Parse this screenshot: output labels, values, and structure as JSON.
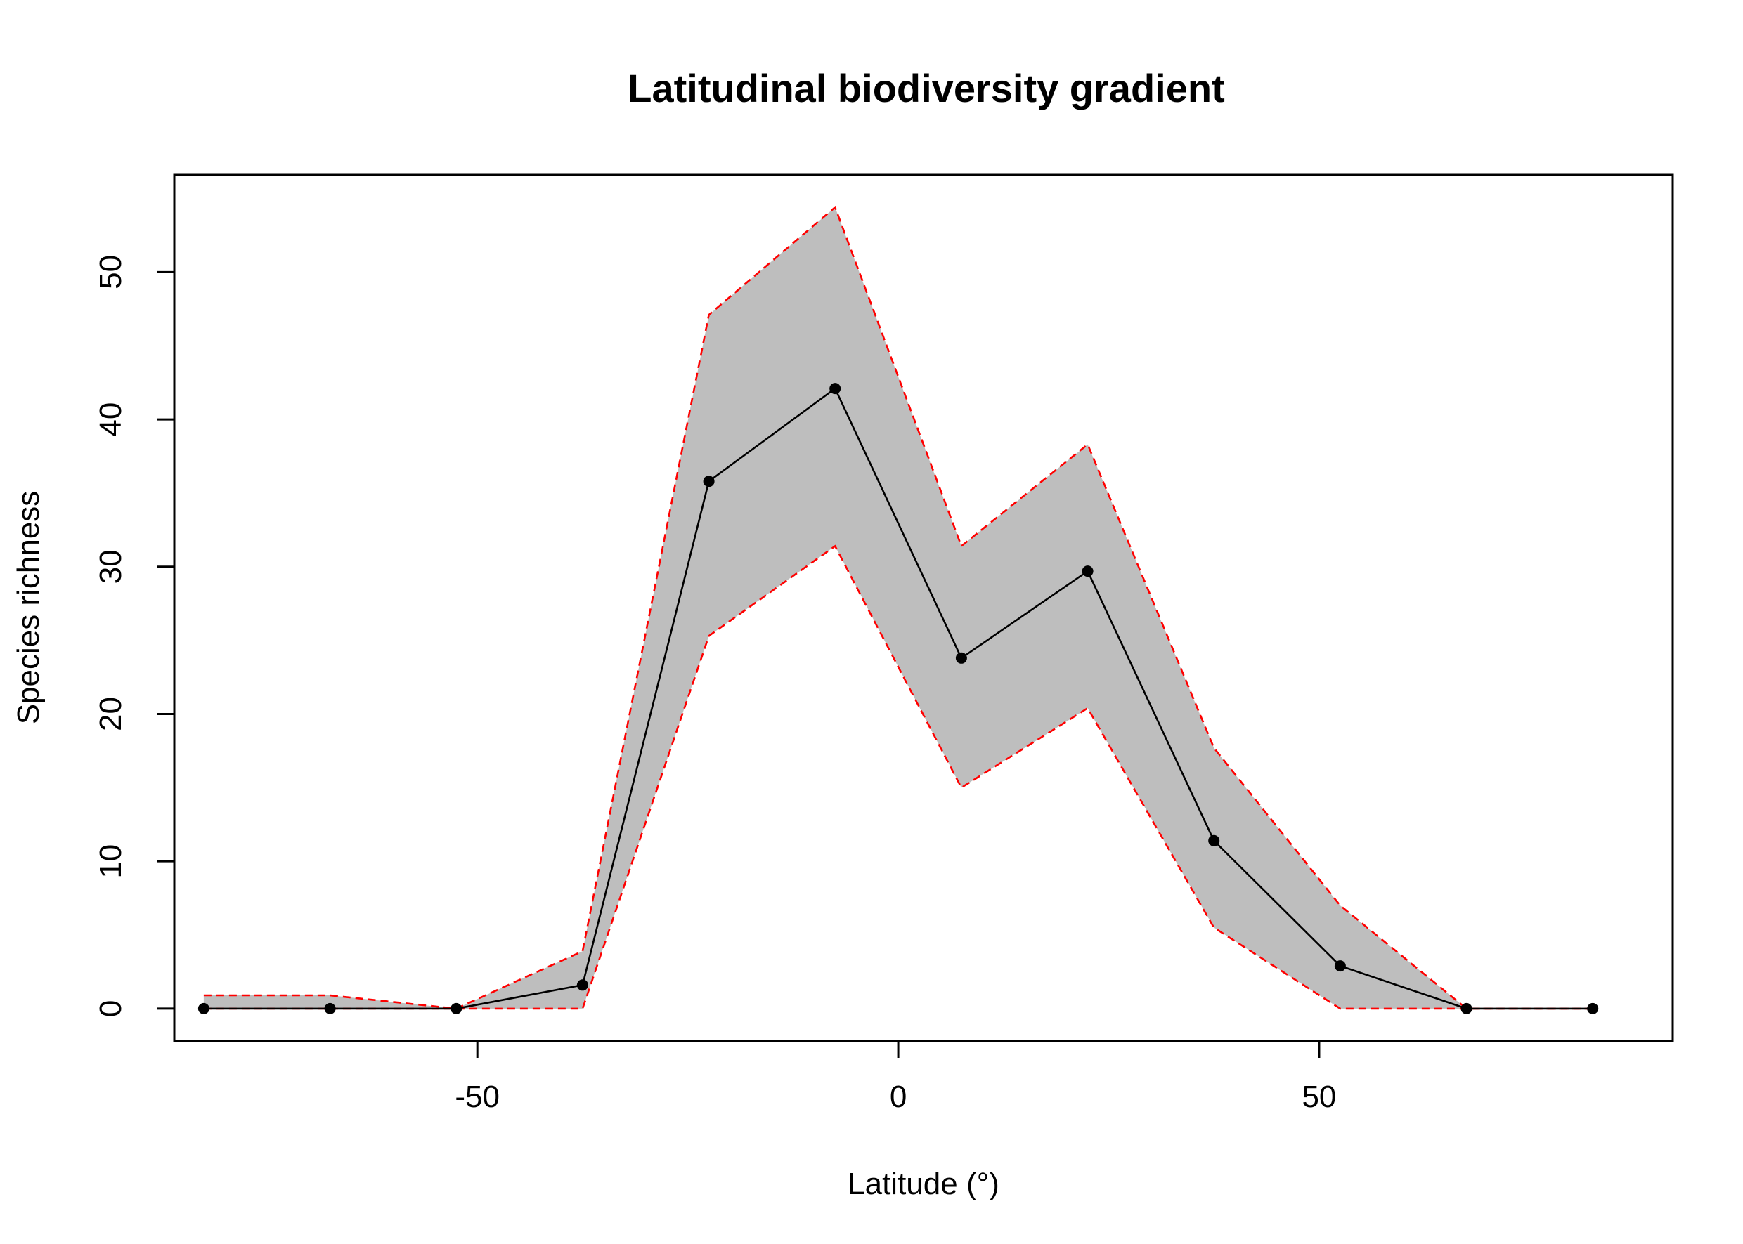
{
  "chart_data": {
    "type": "line",
    "title": "Latitudinal biodiversity gradient",
    "xlabel": "Latitude (°)",
    "ylabel": "Species richness",
    "xlim": [
      -86,
      92
    ],
    "ylim": [
      -2.2,
      56.6
    ],
    "xticks": [
      -50,
      0,
      50
    ],
    "xtick_labels": [
      "-50",
      "0",
      "50"
    ],
    "yticks": [
      0,
      10,
      20,
      30,
      40,
      50
    ],
    "ytick_labels": [
      "0",
      "10",
      "20",
      "30",
      "40",
      "50"
    ],
    "grid": false,
    "legend": "none",
    "x": [
      -82.5,
      -67.5,
      -52.5,
      -37.5,
      -22.5,
      -7.5,
      7.5,
      22.5,
      37.5,
      52.5,
      67.5,
      82.5
    ],
    "series": [
      {
        "role": "mean",
        "values": [
          0,
          0,
          0,
          1.6,
          35.8,
          42.1,
          23.8,
          29.7,
          11.4,
          2.9,
          0,
          0
        ],
        "color": "#000000",
        "markers": "filled-circle"
      },
      {
        "role": "upper",
        "values": [
          0.9,
          0.9,
          0,
          3.9,
          47.1,
          54.4,
          31.4,
          38.3,
          17.7,
          7.0,
          0,
          0
        ],
        "color": "#ff0000",
        "dashed": true
      },
      {
        "role": "lower",
        "values": [
          0,
          0,
          0,
          0,
          25.3,
          31.4,
          15.0,
          20.4,
          5.5,
          0,
          0,
          0
        ],
        "color": "#ff0000",
        "dashed": true
      }
    ],
    "band_fill": "#bebebe",
    "plot_background": "#ffffff",
    "frame_color": "#000000"
  }
}
